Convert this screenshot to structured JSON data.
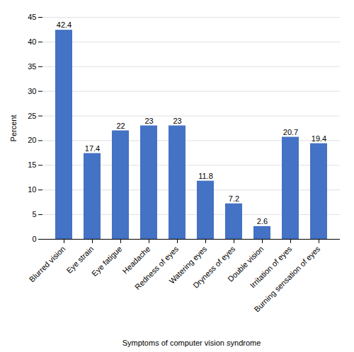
{
  "chart_data": {
    "type": "bar",
    "categories": [
      "Blurred vision",
      "Eye strain",
      "Eye fatigue",
      "Headache",
      "Redness of eyes",
      "Watering eyes",
      "Dryness of eyes",
      "Double vision",
      "Irritation of eyes",
      "Burning sensation of eyes"
    ],
    "values": [
      42.4,
      17.4,
      22,
      23,
      23,
      11.8,
      7.2,
      2.6,
      20.7,
      19.4
    ],
    "color": "#4472C4",
    "xlabel": "Symptoms of computer vision syndrome",
    "ylabel": "Percent",
    "ylim": [
      0,
      45
    ],
    "yticks": [
      0,
      5,
      10,
      15,
      20,
      25,
      30,
      35,
      40,
      45
    ],
    "grid": true,
    "data_labels": true
  }
}
